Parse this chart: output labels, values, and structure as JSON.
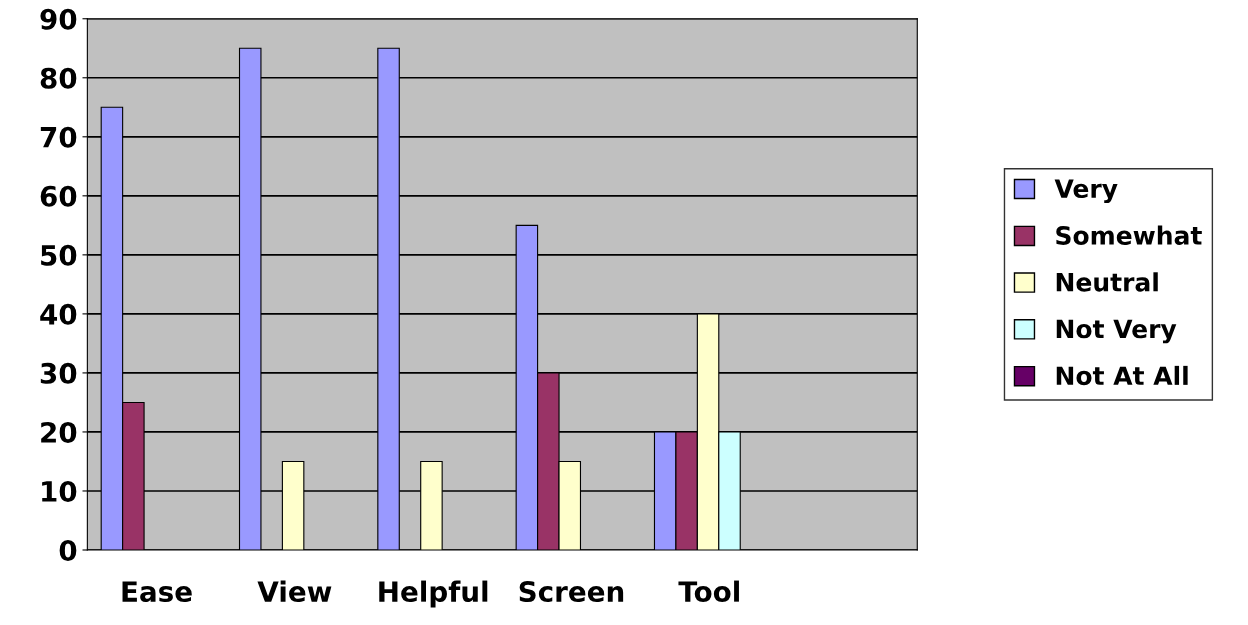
{
  "chart_data": {
    "type": "bar",
    "categories": [
      "Ease",
      "View",
      "Helpful",
      "Screen",
      "Tool",
      null
    ],
    "series": [
      {
        "name": "Very",
        "color": "#9999ff",
        "values": [
          75,
          85,
          85,
          55,
          20,
          null
        ]
      },
      {
        "name": "Somewhat",
        "color": "#993366",
        "values": [
          25,
          null,
          null,
          30,
          20,
          null
        ]
      },
      {
        "name": "Neutral",
        "color": "#ffffcc",
        "values": [
          null,
          15,
          15,
          15,
          40,
          null
        ]
      },
      {
        "name": "Not Very",
        "color": "#ccffff",
        "values": [
          null,
          null,
          null,
          null,
          20,
          null
        ]
      },
      {
        "name": "Not At All",
        "color": "#660066",
        "values": [
          null,
          null,
          null,
          null,
          null,
          null
        ]
      }
    ],
    "ylim": [
      0,
      90
    ],
    "yticks": [
      0,
      10,
      20,
      30,
      40,
      50,
      60,
      70,
      80,
      90
    ],
    "grid": "y",
    "legend": "right"
  }
}
